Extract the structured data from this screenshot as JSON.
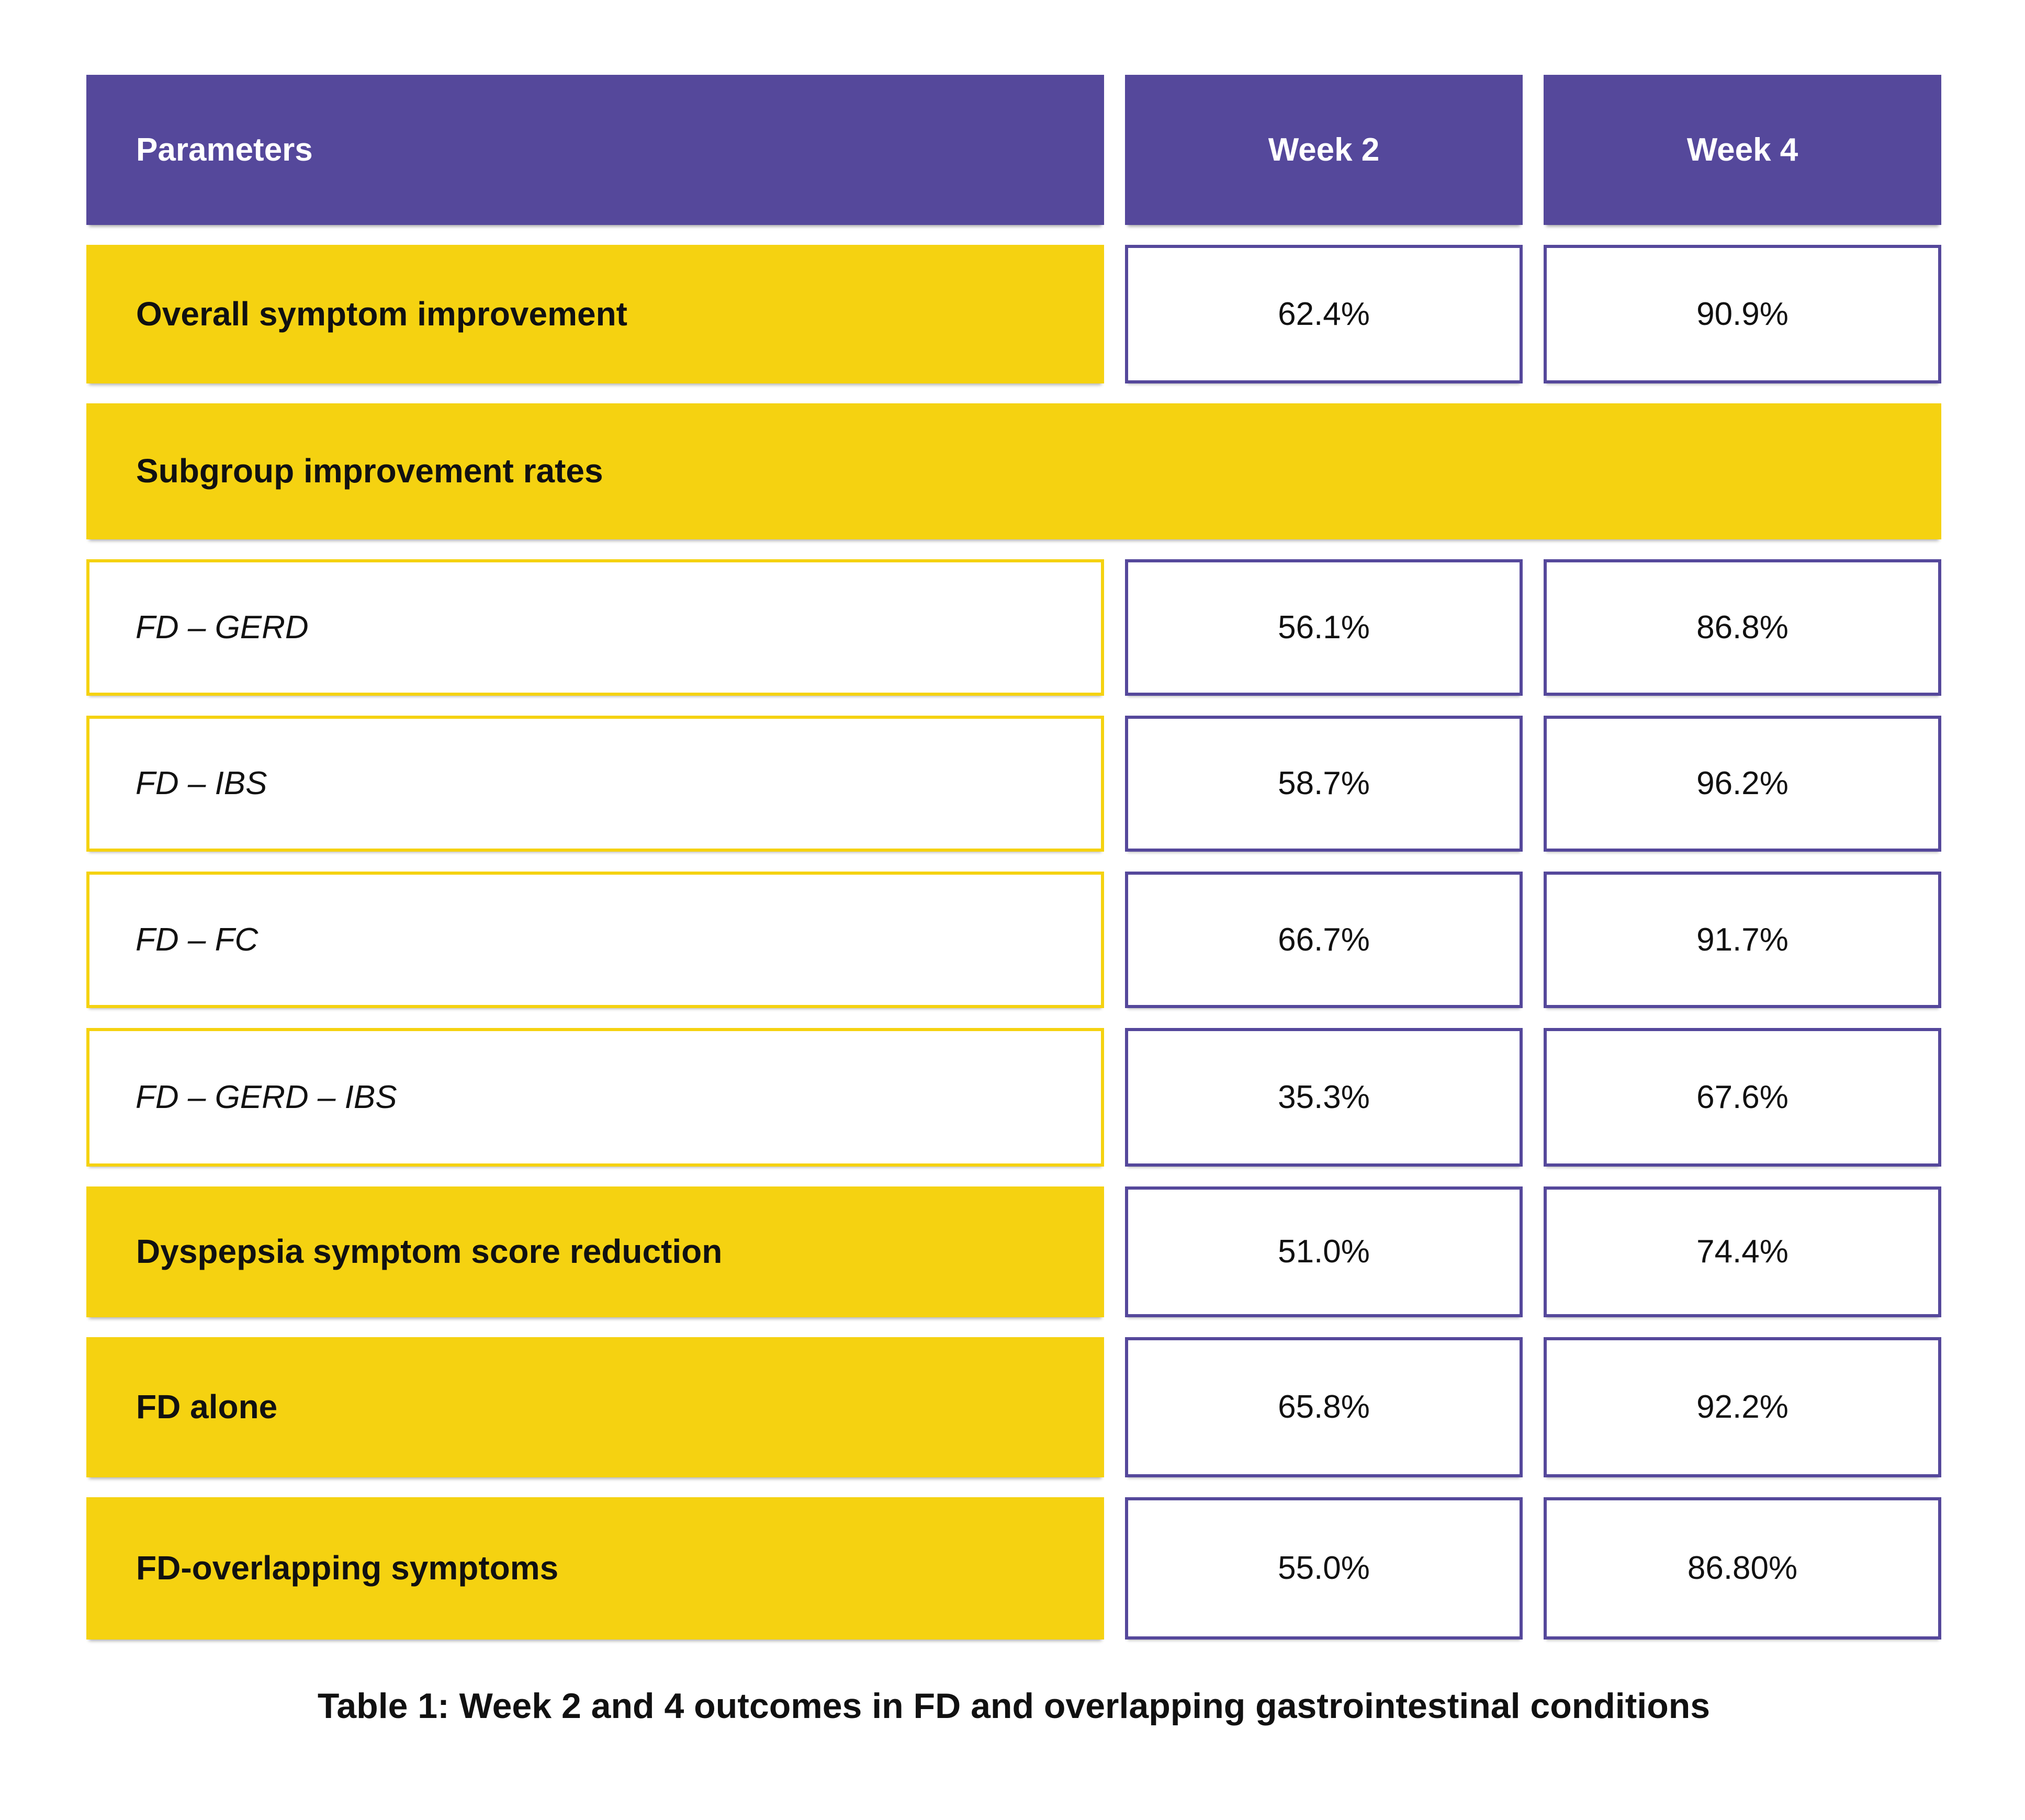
{
  "colors": {
    "header_purple": "#55489B",
    "highlight_yellow": "#F5D211",
    "cell_border_purple": "#55489B",
    "cell_border_yellow": "#F5D211",
    "text_dark": "#111111",
    "header_text": "#ffffff"
  },
  "table": {
    "columns": [
      "Parameters",
      "Week 2",
      "Week 4"
    ],
    "rows": [
      {
        "label": "Overall symptom improvement",
        "style": "highlight",
        "week2": "62.4%",
        "week4": "90.9%"
      },
      {
        "label": "Subgroup improvement rates",
        "style": "section",
        "week2": "",
        "week4": ""
      },
      {
        "label": "FD – GERD",
        "style": "sub",
        "week2": "56.1%",
        "week4": "86.8%"
      },
      {
        "label": "FD – IBS",
        "style": "sub",
        "week2": "58.7%",
        "week4": "96.2%"
      },
      {
        "label": "FD – FC",
        "style": "sub",
        "week2": "66.7%",
        "week4": "91.7%"
      },
      {
        "label": "FD – GERD – IBS",
        "style": "sub",
        "week2": "35.3%",
        "week4": "67.6%"
      },
      {
        "label": "Dyspepsia symptom score reduction",
        "style": "highlight",
        "week2": "51.0%",
        "week4": "74.4%"
      },
      {
        "label": "FD alone",
        "style": "highlight",
        "week2": "65.8%",
        "week4": "92.2%"
      },
      {
        "label": "FD-overlapping symptoms",
        "style": "highlight",
        "week2": "55.0%",
        "week4": "86.80%"
      }
    ],
    "caption": "Table 1: Week 2 and 4 outcomes in FD and overlapping gastrointestinal conditions"
  },
  "chart_data": {
    "type": "table",
    "title": "Table 1: Week 2 and 4 outcomes in FD and overlapping gastrointestinal conditions",
    "columns": [
      "Parameters",
      "Week 2",
      "Week 4"
    ],
    "rows": [
      [
        "Overall symptom improvement",
        "62.4%",
        "90.9%"
      ],
      [
        "Subgroup improvement rates",
        "",
        ""
      ],
      [
        "FD – GERD",
        "56.1%",
        "86.8%"
      ],
      [
        "FD – IBS",
        "58.7%",
        "96.2%"
      ],
      [
        "FD – FC",
        "66.7%",
        "91.7%"
      ],
      [
        "FD – GERD – IBS",
        "35.3%",
        "67.6%"
      ],
      [
        "Dyspepsia symptom score reduction",
        "51.0%",
        "74.4%"
      ],
      [
        "FD alone",
        "65.8%",
        "92.2%"
      ],
      [
        "FD-overlapping symptoms",
        "55.0%",
        "86.80%"
      ]
    ],
    "series": [
      {
        "name": "Week 2",
        "values": [
          62.4,
          null,
          56.1,
          58.7,
          66.7,
          35.3,
          51.0,
          65.8,
          55.0
        ]
      },
      {
        "name": "Week 4",
        "values": [
          90.9,
          null,
          86.8,
          96.2,
          91.7,
          67.6,
          74.4,
          92.2,
          86.8
        ]
      }
    ],
    "categories": [
      "Overall symptom improvement",
      "Subgroup improvement rates",
      "FD – GERD",
      "FD – IBS",
      "FD – FC",
      "FD – GERD – IBS",
      "Dyspepsia symptom score reduction",
      "FD alone",
      "FD-overlapping symptoms"
    ]
  }
}
